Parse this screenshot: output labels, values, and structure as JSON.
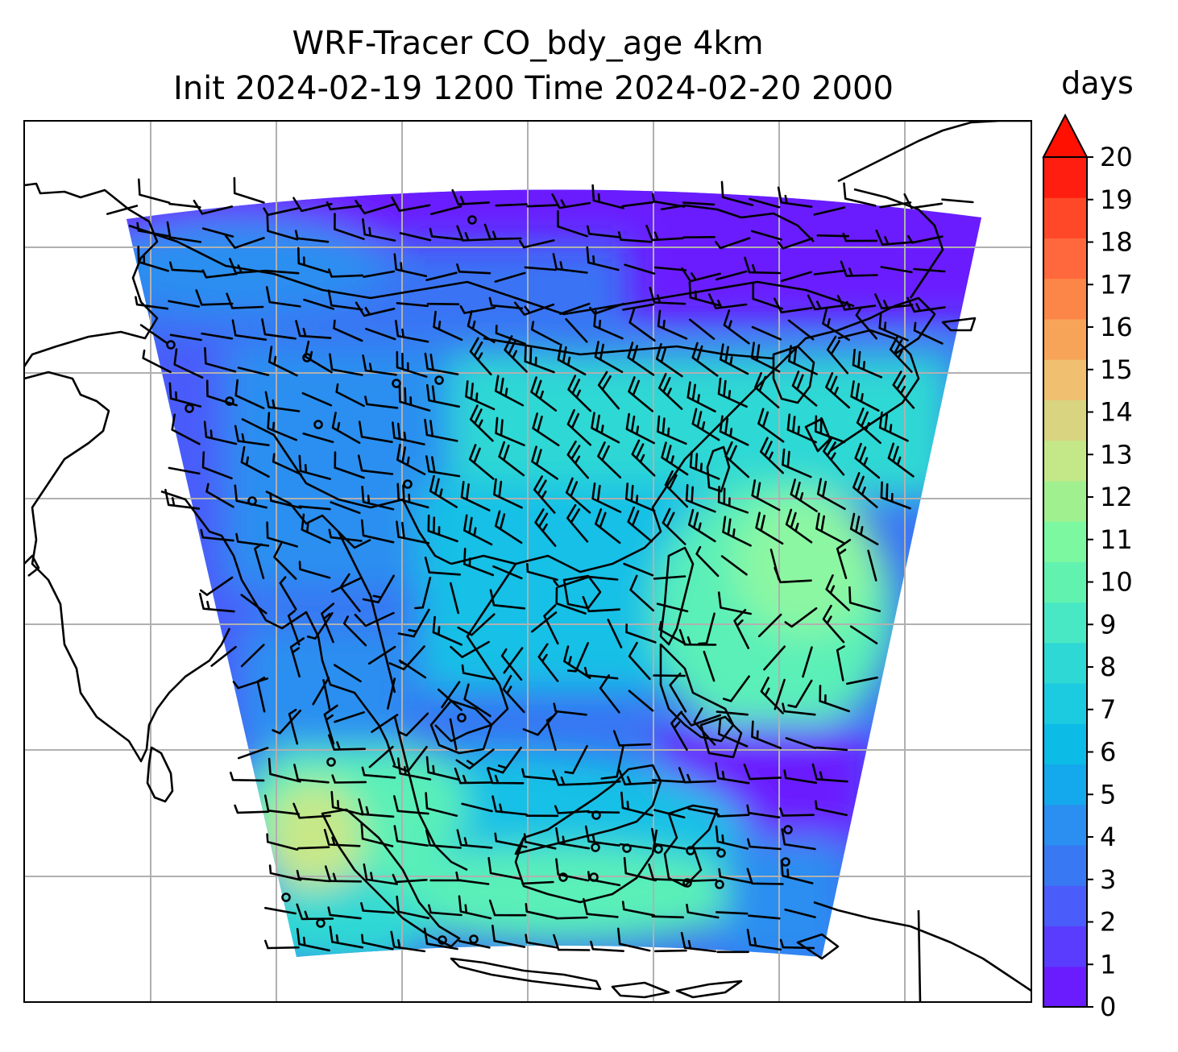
{
  "title": {
    "line1": "WRF-Tracer CO_bdy_age 4km",
    "line2": "Init 2024-02-19 1200 Time 2024-02-20 2000"
  },
  "colorbar": {
    "label": "days",
    "ticks": [
      "0",
      "1",
      "2",
      "3",
      "4",
      "5",
      "6",
      "7",
      "8",
      "9",
      "10",
      "11",
      "12",
      "13",
      "14",
      "15",
      "16",
      "17",
      "18",
      "19",
      "20"
    ],
    "colors": [
      "#6a1cff",
      "#5a3cff",
      "#4a5cfa",
      "#3878f2",
      "#2a8ff0",
      "#14a8ec",
      "#0cbbe6",
      "#1ccbe0",
      "#2ed8d4",
      "#48e8c4",
      "#62f2b0",
      "#7cf8a0",
      "#a0f090",
      "#c4e888",
      "#d8d480",
      "#f0c070",
      "#f8a458",
      "#fc8648",
      "#ff683c",
      "#ff4828",
      "#ff1e10"
    ],
    "extend_color": "#ff1000"
  },
  "field_colors": {
    "purple": "#6a1cff",
    "blue_violet": "#4a5cfa",
    "blue": "#2a8ff0",
    "cyan": "#14c0e6",
    "teal": "#2ed8d4",
    "aqua_green": "#5af0b8",
    "light_green": "#8cf7a2",
    "yellow_green": "#c8e888"
  }
}
